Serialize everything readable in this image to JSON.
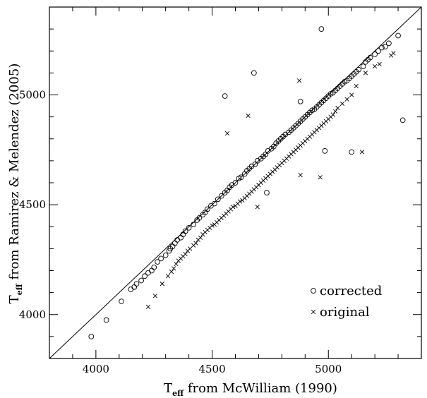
{
  "chart_data": {
    "type": "scatter",
    "xlabel": {
      "main": "T",
      "sub": "eff",
      "rest": " from McWilliam (1990)"
    },
    "ylabel": {
      "main": "T",
      "sub": "eff",
      "rest": " from Ramirez & Melendez (2005)"
    },
    "xlim": [
      3800,
      5400
    ],
    "ylim": [
      3800,
      5400
    ],
    "x_ticks": [
      4000,
      4500,
      5000
    ],
    "y_ticks": [
      4000,
      4500,
      5000
    ],
    "x_tick_labels": [
      "4000",
      "4500",
      "5000"
    ],
    "y_tick_labels": [
      "4000",
      "4500",
      "5000"
    ],
    "reference_line": "y = x",
    "legend": {
      "position": "bottom-right",
      "entries": [
        "corrected",
        "original"
      ]
    },
    "series": [
      {
        "name": "corrected",
        "marker": "circle",
        "points": [
          [
            3980,
            3900
          ],
          [
            4045,
            3975
          ],
          [
            4110,
            4060
          ],
          [
            4150,
            4115
          ],
          [
            4165,
            4125
          ],
          [
            4175,
            4140
          ],
          [
            4195,
            4155
          ],
          [
            4210,
            4175
          ],
          [
            4225,
            4190
          ],
          [
            4240,
            4200
          ],
          [
            4250,
            4215
          ],
          [
            4265,
            4240
          ],
          [
            4280,
            4255
          ],
          [
            4300,
            4270
          ],
          [
            4315,
            4290
          ],
          [
            4320,
            4300
          ],
          [
            4330,
            4310
          ],
          [
            4340,
            4325
          ],
          [
            4350,
            4340
          ],
          [
            4365,
            4350
          ],
          [
            4375,
            4365
          ],
          [
            4385,
            4380
          ],
          [
            4400,
            4395
          ],
          [
            4420,
            4410
          ],
          [
            4435,
            4430
          ],
          [
            4445,
            4440
          ],
          [
            4460,
            4455
          ],
          [
            4470,
            4465
          ],
          [
            4480,
            4480
          ],
          [
            4495,
            4495
          ],
          [
            4510,
            4505
          ],
          [
            4525,
            4525
          ],
          [
            4540,
            4540
          ],
          [
            4555,
            4555
          ],
          [
            4565,
            4565
          ],
          [
            4575,
            4580
          ],
          [
            4585,
            4590
          ],
          [
            4600,
            4600
          ],
          [
            4615,
            4620
          ],
          [
            4625,
            4625
          ],
          [
            4640,
            4640
          ],
          [
            4650,
            4655
          ],
          [
            4660,
            4665
          ],
          [
            4670,
            4675
          ],
          [
            4685,
            4685
          ],
          [
            4695,
            4700
          ],
          [
            4710,
            4710
          ],
          [
            4720,
            4720
          ],
          [
            4730,
            4730
          ],
          [
            4740,
            4745
          ],
          [
            4755,
            4755
          ],
          [
            4765,
            4765
          ],
          [
            4775,
            4780
          ],
          [
            4785,
            4790
          ],
          [
            4795,
            4800
          ],
          [
            4805,
            4810
          ],
          [
            4815,
            4820
          ],
          [
            4830,
            4830
          ],
          [
            4840,
            4840
          ],
          [
            4850,
            4850
          ],
          [
            4860,
            4860
          ],
          [
            4870,
            4870
          ],
          [
            4880,
            4880
          ],
          [
            4890,
            4890
          ],
          [
            4900,
            4900
          ],
          [
            4910,
            4910
          ],
          [
            4920,
            4920
          ],
          [
            4930,
            4930
          ],
          [
            4940,
            4935
          ],
          [
            4950,
            4945
          ],
          [
            4960,
            4955
          ],
          [
            4970,
            4965
          ],
          [
            4980,
            4975
          ],
          [
            4990,
            4985
          ],
          [
            5000,
            4995
          ],
          [
            5010,
            5005
          ],
          [
            5020,
            5010
          ],
          [
            5030,
            5020
          ],
          [
            5040,
            5030
          ],
          [
            5050,
            5040
          ],
          [
            5060,
            5050
          ],
          [
            5070,
            5060
          ],
          [
            5080,
            5065
          ],
          [
            5090,
            5075
          ],
          [
            5100,
            5085
          ],
          [
            5110,
            5095
          ],
          [
            5120,
            5105
          ],
          [
            5130,
            5115
          ],
          [
            5150,
            5130
          ],
          [
            5160,
            5150
          ],
          [
            5170,
            5160
          ],
          [
            5180,
            5170
          ],
          [
            5200,
            5185
          ],
          [
            5215,
            5200
          ],
          [
            5230,
            5215
          ],
          [
            5245,
            5220
          ],
          [
            5260,
            5235
          ],
          [
            5300,
            5270
          ],
          [
            4555,
            4995
          ],
          [
            4680,
            5100
          ],
          [
            4970,
            5300
          ],
          [
            4880,
            4970
          ],
          [
            4985,
            4745
          ],
          [
            5100,
            4740
          ],
          [
            5320,
            4885
          ],
          [
            4735,
            4555
          ]
        ]
      },
      {
        "name": "original",
        "marker": "cross",
        "points": [
          [
            4225,
            4035
          ],
          [
            4255,
            4085
          ],
          [
            4285,
            4140
          ],
          [
            4310,
            4175
          ],
          [
            4325,
            4195
          ],
          [
            4335,
            4210
          ],
          [
            4345,
            4230
          ],
          [
            4355,
            4245
          ],
          [
            4365,
            4255
          ],
          [
            4375,
            4265
          ],
          [
            4385,
            4275
          ],
          [
            4395,
            4290
          ],
          [
            4405,
            4300
          ],
          [
            4420,
            4315
          ],
          [
            4430,
            4325
          ],
          [
            4440,
            4340
          ],
          [
            4450,
            4350
          ],
          [
            4460,
            4365
          ],
          [
            4470,
            4375
          ],
          [
            4480,
            4385
          ],
          [
            4490,
            4395
          ],
          [
            4500,
            4405
          ],
          [
            4510,
            4410
          ],
          [
            4520,
            4420
          ],
          [
            4530,
            4430
          ],
          [
            4540,
            4440
          ],
          [
            4550,
            4450
          ],
          [
            4560,
            4460
          ],
          [
            4570,
            4470
          ],
          [
            4580,
            4480
          ],
          [
            4590,
            4490
          ],
          [
            4600,
            4495
          ],
          [
            4610,
            4505
          ],
          [
            4620,
            4515
          ],
          [
            4630,
            4520
          ],
          [
            4640,
            4530
          ],
          [
            4650,
            4540
          ],
          [
            4660,
            4550
          ],
          [
            4670,
            4560
          ],
          [
            4680,
            4570
          ],
          [
            4690,
            4580
          ],
          [
            4700,
            4590
          ],
          [
            4710,
            4600
          ],
          [
            4720,
            4610
          ],
          [
            4730,
            4620
          ],
          [
            4740,
            4630
          ],
          [
            4750,
            4640
          ],
          [
            4760,
            4650
          ],
          [
            4770,
            4660
          ],
          [
            4780,
            4670
          ],
          [
            4790,
            4680
          ],
          [
            4800,
            4690
          ],
          [
            4810,
            4700
          ],
          [
            4820,
            4710
          ],
          [
            4830,
            4720
          ],
          [
            4840,
            4730
          ],
          [
            4850,
            4740
          ],
          [
            4860,
            4750
          ],
          [
            4870,
            4760
          ],
          [
            4880,
            4770
          ],
          [
            4890,
            4780
          ],
          [
            4900,
            4790
          ],
          [
            4910,
            4800
          ],
          [
            4920,
            4810
          ],
          [
            4930,
            4820
          ],
          [
            4940,
            4830
          ],
          [
            4950,
            4840
          ],
          [
            4960,
            4850
          ],
          [
            4970,
            4860
          ],
          [
            4980,
            4870
          ],
          [
            4990,
            4880
          ],
          [
            5000,
            4890
          ],
          [
            5010,
            4900
          ],
          [
            5020,
            4910
          ],
          [
            5030,
            4925
          ],
          [
            5040,
            4940
          ],
          [
            5060,
            4960
          ],
          [
            5080,
            4980
          ],
          [
            5100,
            5000
          ],
          [
            5120,
            5040
          ],
          [
            5160,
            5100
          ],
          [
            5200,
            5130
          ],
          [
            5270,
            5180
          ],
          [
            5280,
            5190
          ],
          [
            4565,
            4825
          ],
          [
            4655,
            4905
          ],
          [
            4875,
            5065
          ],
          [
            4695,
            4490
          ],
          [
            4700,
            4590
          ],
          [
            4880,
            4635
          ],
          [
            4965,
            4625
          ],
          [
            5145,
            4740
          ],
          [
            5220,
            5140
          ]
        ]
      }
    ]
  }
}
